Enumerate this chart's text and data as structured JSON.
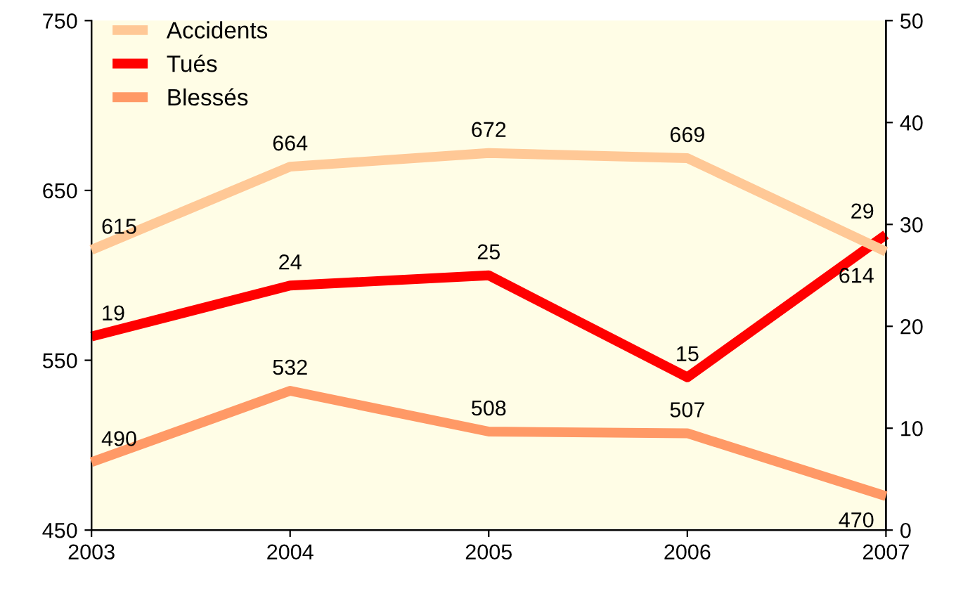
{
  "chart_data": {
    "type": "line",
    "x": [
      2003,
      2004,
      2005,
      2006,
      2007
    ],
    "series": [
      {
        "name": "Accidents",
        "color": "#ffc896",
        "values": [
          615,
          664,
          672,
          669,
          614
        ]
      },
      {
        "name": "Tués",
        "color": "#ff0000",
        "values": [
          19,
          24,
          25,
          15,
          29
        ],
        "axis": "y2"
      },
      {
        "name": "Blessés",
        "color": "#ff9966",
        "values": [
          490,
          532,
          508,
          507,
          470
        ]
      }
    ],
    "xlim": [
      2003,
      2007
    ],
    "xticks": [
      2003,
      2004,
      2005,
      2006,
      2007
    ],
    "ylim": [
      450,
      750
    ],
    "yticks": [
      450,
      550,
      650,
      750
    ],
    "y2lim": [
      0,
      50
    ],
    "y2ticks": [
      0,
      10,
      20,
      30,
      40,
      50
    ],
    "data_labels": true,
    "legend": "top left",
    "grid": false,
    "marker": "none",
    "line_style": "solid"
  }
}
